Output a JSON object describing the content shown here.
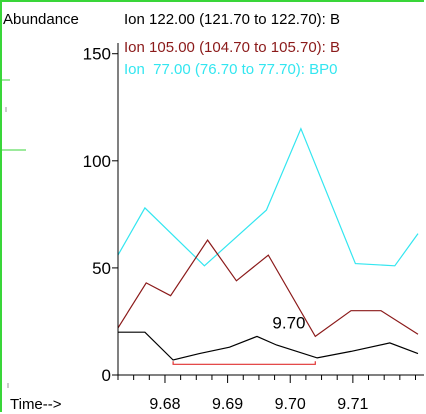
{
  "chart_data": {
    "type": "line",
    "ylabel": "Abundance",
    "xlabel": "Time-->",
    "xlim": [
      9.6725,
      9.7204
    ],
    "ylim": [
      0,
      155
    ],
    "x_ticks": [
      9.68,
      9.69,
      9.7,
      9.71
    ],
    "x_tick_labels": [
      "9.68",
      "9.69",
      "9.70",
      "9.71"
    ],
    "y_ticks": [
      0,
      50,
      100,
      150
    ],
    "y_tick_labels": [
      "0",
      "50",
      "100",
      "150"
    ],
    "grid": false,
    "legend_position": "top",
    "colors": {
      "ion77": "#33e6f0",
      "ion105": "#8b1a1a",
      "ion122": "#000000",
      "baseline": "#e03030",
      "frame": "#39d639"
    },
    "series": [
      {
        "name": "Ion  77.00 (76.70 to 77.70): BP0",
        "color": "#33e6f0",
        "x": [
          9.6725,
          9.6768,
          9.6863,
          9.6962,
          9.7017,
          9.7104,
          9.7167,
          9.7204
        ],
        "y": [
          56,
          78,
          51,
          77,
          115,
          52,
          51,
          66
        ]
      },
      {
        "name": "Ion 105.00 (104.70 to 105.70): B",
        "color": "#8b1a1a",
        "x": [
          9.6725,
          9.677,
          9.6809,
          9.6868,
          9.6914,
          9.6965,
          9.704,
          9.7097,
          9.7145,
          9.7204
        ],
        "y": [
          22,
          43,
          37,
          63,
          44,
          56,
          18,
          30,
          30,
          19
        ]
      },
      {
        "name": "Ion 122.00 (121.70 to 122.70): B",
        "color": "#000000",
        "x": [
          9.6725,
          9.6768,
          9.6813,
          9.6855,
          9.6903,
          9.6947,
          9.6978,
          9.7043,
          9.7097,
          9.7159,
          9.7204
        ],
        "y": [
          20,
          20,
          7,
          10,
          13,
          18,
          14,
          8,
          11,
          15,
          10
        ]
      }
    ],
    "baseline_segment": {
      "x": [
        9.6813,
        9.704
      ],
      "y": 5
    },
    "annotations": [
      {
        "text": "9.70",
        "x": 9.6998,
        "y": 23
      }
    ]
  }
}
